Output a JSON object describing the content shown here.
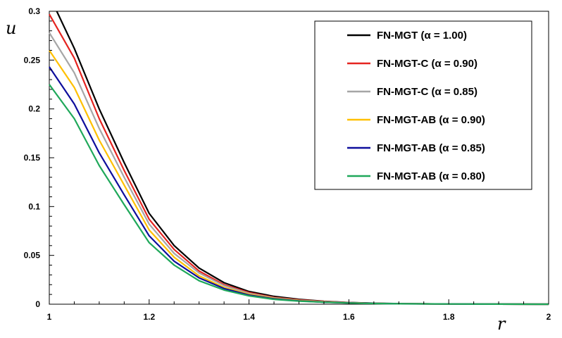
{
  "chart_data": {
    "type": "line",
    "xlabel": "r",
    "ylabel": "u",
    "xlim": [
      1,
      2
    ],
    "ylim": [
      0,
      0.3
    ],
    "x_ticks": [
      "1",
      "1.2",
      "1.4",
      "1.6",
      "1.8",
      "2"
    ],
    "y_ticks": [
      "0",
      "0.05",
      "0.1",
      "0.15",
      "0.2",
      "0.25",
      "0.3"
    ],
    "grid": false,
    "legend": "top-right",
    "series": [
      {
        "name": "FN-MGT (α = 1.00)",
        "color": "#000000",
        "points": [
          [
            1.015,
            0.3
          ],
          [
            1.05,
            0.262
          ],
          [
            1.1,
            0.2
          ],
          [
            1.15,
            0.145
          ],
          [
            1.2,
            0.093
          ],
          [
            1.25,
            0.06
          ],
          [
            1.3,
            0.037
          ],
          [
            1.35,
            0.022
          ],
          [
            1.4,
            0.013
          ],
          [
            1.45,
            0.008
          ],
          [
            1.5,
            0.005
          ],
          [
            1.55,
            0.003
          ],
          [
            1.6,
            0.0017
          ],
          [
            1.65,
            0.001
          ],
          [
            1.7,
            0.0006
          ],
          [
            1.8,
            0.0002
          ],
          [
            1.9,
            0.0001
          ],
          [
            2.0,
            0.0
          ]
        ]
      },
      {
        "name": "FN-MGT-C (α = 0.90)",
        "color": "#e52420",
        "points": [
          [
            1.0,
            0.297
          ],
          [
            1.05,
            0.252
          ],
          [
            1.1,
            0.19
          ],
          [
            1.15,
            0.137
          ],
          [
            1.2,
            0.087
          ],
          [
            1.25,
            0.056
          ],
          [
            1.3,
            0.034
          ],
          [
            1.35,
            0.02
          ],
          [
            1.4,
            0.012
          ],
          [
            1.45,
            0.007
          ],
          [
            1.5,
            0.0045
          ],
          [
            1.55,
            0.0028
          ],
          [
            1.6,
            0.0016
          ],
          [
            1.65,
            0.0009
          ],
          [
            1.7,
            0.0005
          ],
          [
            1.8,
            0.0002
          ],
          [
            1.9,
            0.0001
          ],
          [
            2.0,
            0.0
          ]
        ]
      },
      {
        "name": "FN-MGT-C (α = 0.85)",
        "color": "#a6a6a6",
        "points": [
          [
            1.0,
            0.278
          ],
          [
            1.05,
            0.237
          ],
          [
            1.1,
            0.18
          ],
          [
            1.15,
            0.13
          ],
          [
            1.2,
            0.082
          ],
          [
            1.25,
            0.052
          ],
          [
            1.3,
            0.032
          ],
          [
            1.35,
            0.019
          ],
          [
            1.4,
            0.011
          ],
          [
            1.45,
            0.0065
          ],
          [
            1.5,
            0.004
          ],
          [
            1.55,
            0.0025
          ],
          [
            1.6,
            0.0015
          ],
          [
            1.65,
            0.0009
          ],
          [
            1.7,
            0.0005
          ],
          [
            1.8,
            0.0002
          ],
          [
            1.9,
            0.0001
          ],
          [
            2.0,
            0.0
          ]
        ]
      },
      {
        "name": "FN-MGT-AB (α = 0.90)",
        "color": "#ffc000",
        "points": [
          [
            1.0,
            0.26
          ],
          [
            1.05,
            0.222
          ],
          [
            1.1,
            0.168
          ],
          [
            1.15,
            0.122
          ],
          [
            1.2,
            0.076
          ],
          [
            1.25,
            0.048
          ],
          [
            1.3,
            0.029
          ],
          [
            1.35,
            0.017
          ],
          [
            1.4,
            0.01
          ],
          [
            1.45,
            0.006
          ],
          [
            1.5,
            0.0037
          ],
          [
            1.55,
            0.0023
          ],
          [
            1.6,
            0.0014
          ],
          [
            1.65,
            0.0008
          ],
          [
            1.7,
            0.0005
          ],
          [
            1.8,
            0.0002
          ],
          [
            1.9,
            0.0001
          ],
          [
            2.0,
            0.0
          ]
        ]
      },
      {
        "name": "FN-MGT-AB (α = 0.85)",
        "color": "#0d0d9c",
        "points": [
          [
            1.0,
            0.243
          ],
          [
            1.05,
            0.205
          ],
          [
            1.1,
            0.155
          ],
          [
            1.15,
            0.112
          ],
          [
            1.2,
            0.07
          ],
          [
            1.25,
            0.044
          ],
          [
            1.3,
            0.027
          ],
          [
            1.35,
            0.016
          ],
          [
            1.4,
            0.0093
          ],
          [
            1.45,
            0.0055
          ],
          [
            1.5,
            0.0034
          ],
          [
            1.55,
            0.0021
          ],
          [
            1.6,
            0.0013
          ],
          [
            1.65,
            0.0008
          ],
          [
            1.7,
            0.0004
          ],
          [
            1.8,
            0.0002
          ],
          [
            1.9,
            0.0001
          ],
          [
            2.0,
            0.0
          ]
        ]
      },
      {
        "name": "FN-MGT-AB (α = 0.80)",
        "color": "#1fa85a",
        "points": [
          [
            1.0,
            0.225
          ],
          [
            1.05,
            0.19
          ],
          [
            1.1,
            0.142
          ],
          [
            1.15,
            0.102
          ],
          [
            1.2,
            0.063
          ],
          [
            1.25,
            0.04
          ],
          [
            1.3,
            0.024
          ],
          [
            1.35,
            0.0145
          ],
          [
            1.4,
            0.0085
          ],
          [
            1.45,
            0.005
          ],
          [
            1.5,
            0.0031
          ],
          [
            1.55,
            0.002
          ],
          [
            1.6,
            0.0012
          ],
          [
            1.65,
            0.0007
          ],
          [
            1.7,
            0.0004
          ],
          [
            1.8,
            0.0002
          ],
          [
            1.9,
            0.0001
          ],
          [
            2.0,
            0.0
          ]
        ]
      }
    ]
  }
}
